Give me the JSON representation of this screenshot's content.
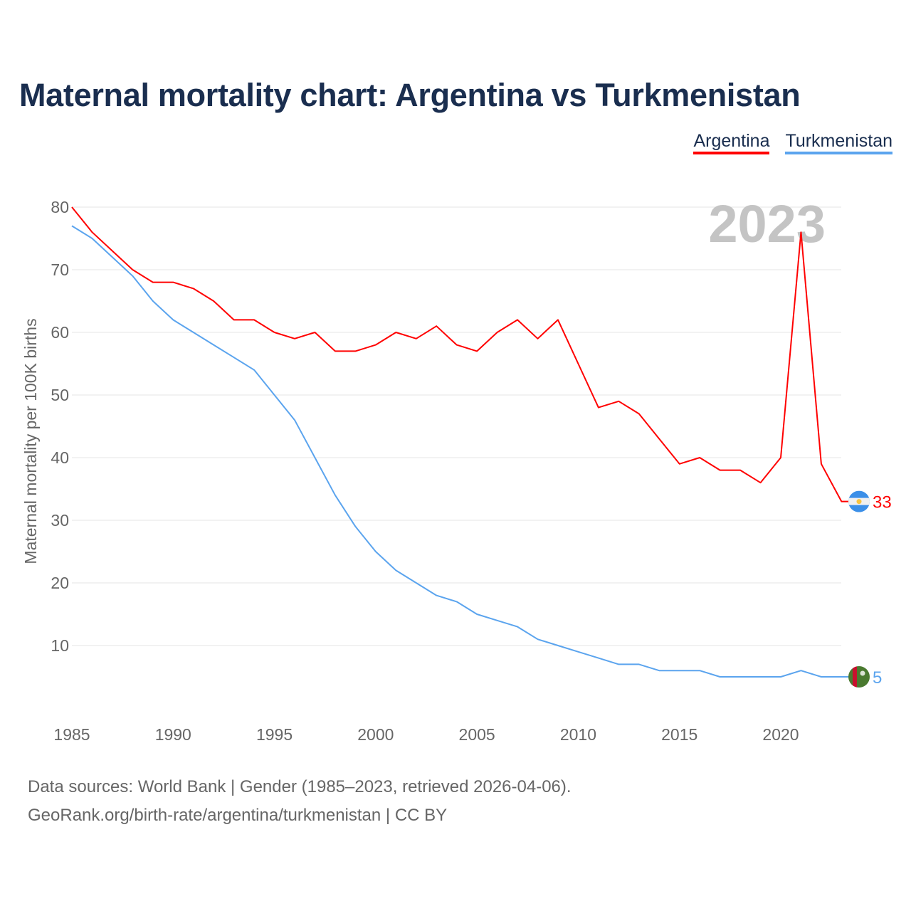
{
  "chart_data": {
    "type": "line",
    "title": "Maternal mortality chart: Argentina vs Turkmenistan",
    "ylabel": "Maternal mortality per 100K births",
    "xlabel": "",
    "year_label": "2023",
    "xlim": [
      1985,
      2023
    ],
    "ylim": [
      0,
      80
    ],
    "x_ticks": [
      1985,
      1990,
      1995,
      2000,
      2005,
      2010,
      2015,
      2020
    ],
    "y_ticks": [
      10,
      20,
      30,
      40,
      50,
      60,
      70,
      80
    ],
    "grid": true,
    "legend_placement": "top-right",
    "x": [
      1985,
      1986,
      1987,
      1988,
      1989,
      1990,
      1991,
      1992,
      1993,
      1994,
      1995,
      1996,
      1997,
      1998,
      1999,
      2000,
      2001,
      2002,
      2003,
      2004,
      2005,
      2006,
      2007,
      2008,
      2009,
      2010,
      2011,
      2012,
      2013,
      2014,
      2015,
      2016,
      2017,
      2018,
      2019,
      2020,
      2021,
      2022,
      2023
    ],
    "series": [
      {
        "name": "Argentina",
        "color": "#ff0000",
        "end_label": "33",
        "values": [
          80,
          76,
          73,
          70,
          68,
          68,
          67,
          65,
          62,
          62,
          60,
          59,
          60,
          57,
          57,
          58,
          60,
          59,
          61,
          58,
          57,
          60,
          62,
          59,
          62,
          55,
          48,
          49,
          47,
          43,
          39,
          40,
          38,
          38,
          36,
          40,
          76,
          39,
          33
        ]
      },
      {
        "name": "Turkmenistan",
        "color": "#5ba4ee",
        "end_label": "5",
        "values": [
          77,
          75,
          72,
          69,
          65,
          62,
          60,
          58,
          56,
          54,
          50,
          46,
          40,
          34,
          29,
          25,
          22,
          20,
          18,
          17,
          15,
          14,
          13,
          11,
          10,
          9,
          8,
          7,
          7,
          6,
          6,
          6,
          5,
          5,
          5,
          5,
          6,
          5,
          5
        ]
      }
    ]
  },
  "footer": {
    "line1": "Data sources: World Bank | Gender (1985–2023, retrieved 2026-04-06).",
    "line2": "GeoRank.org/birth-rate/argentina/turkmenistan | CC BY"
  }
}
